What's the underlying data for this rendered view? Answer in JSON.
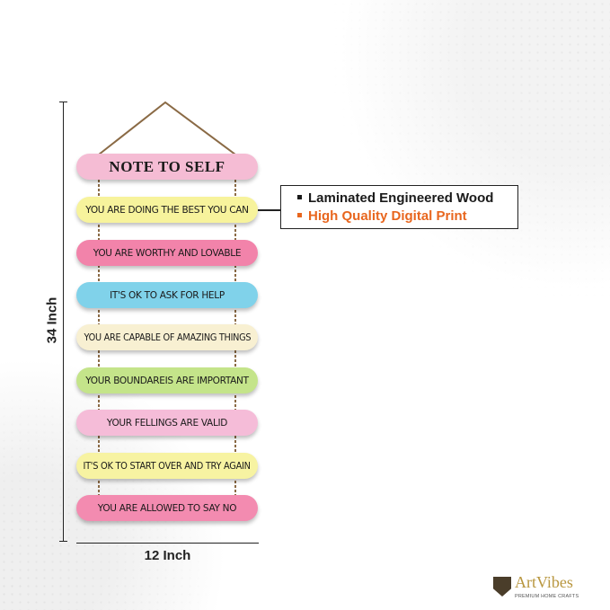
{
  "dimensions": {
    "height_label": "34 Inch",
    "width_label": "12 Inch"
  },
  "planks": [
    {
      "text": "NOTE TO SELF",
      "color": "#f5bcd4"
    },
    {
      "text": "YOU ARE DOING THE BEST YOU CAN",
      "color": "#f7f39c"
    },
    {
      "text": "YOU ARE WORTHY AND LOVABLE",
      "color": "#f283aa"
    },
    {
      "text": "IT'S OK TO ASK FOR HELP",
      "color": "#80d2ea"
    },
    {
      "text": "YOU ARE CAPABLE OF AMAZING THINGS",
      "color": "#f8f0d2"
    },
    {
      "text": "YOUR BOUNDAREIS ARE IMPORTANT",
      "color": "#c4e48a"
    },
    {
      "text": "YOUR FELLINGS ARE VALID",
      "color": "#f5bcd8"
    },
    {
      "text": "IT'S OK TO START OVER AND TRY AGAIN",
      "color": "#f7f3a2"
    },
    {
      "text": "YOU ARE ALLOWED TO SAY NO",
      "color": "#f38bb0"
    }
  ],
  "features": [
    {
      "text": "Laminated Engineered Wood",
      "color": "#1a1a1a"
    },
    {
      "text": "High Quality Digital Print",
      "color": "#e8661e"
    }
  ],
  "logo": {
    "brand": "ArtVibes",
    "tagline": "PREMIUM HOME CRAFTS"
  }
}
